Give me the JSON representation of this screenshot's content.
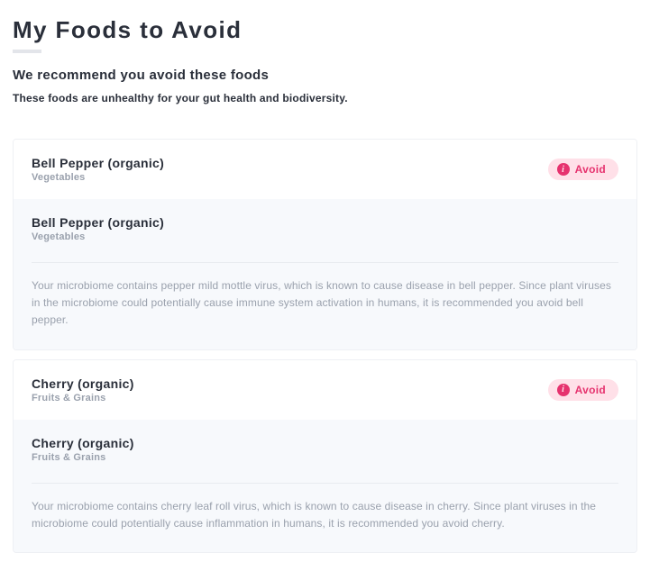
{
  "header": {
    "title": "My Foods to Avoid",
    "subtitle": "We recommend you avoid these foods",
    "description": "These foods are unhealthy for your gut health and biodiversity."
  },
  "badge_label": "Avoid",
  "colors": {
    "text_primary": "#2a2f3a",
    "text_muted": "#9aa1ad",
    "badge_bg": "#ffe0e8",
    "badge_fg": "#e6326e",
    "expanded_bg": "#f7f9fc",
    "divider": "#e8ebf0",
    "title_underline": "#e3e5ea"
  },
  "foods": [
    {
      "name": "Bell Pepper (organic)",
      "category": "Vegetables",
      "explanation": "Your microbiome contains pepper mild mottle virus, which is known to cause disease in bell pepper. Since plant viruses in the microbiome could potentially cause immune system activation in humans, it is recommended you avoid bell pepper."
    },
    {
      "name": "Cherry (organic)",
      "category": "Fruits & Grains",
      "explanation": "Your microbiome contains cherry leaf roll virus, which is known to cause disease in cherry. Since plant viruses in the microbiome could potentially cause inflammation in humans, it is recommended you avoid cherry."
    }
  ]
}
